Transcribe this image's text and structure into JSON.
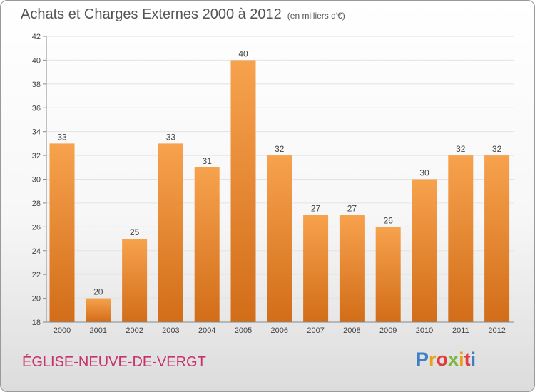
{
  "header": {
    "title": "Achats et Charges Externes 2000 à 2012",
    "unit": "(en milliers d'€)"
  },
  "footer": {
    "location": "ÉGLISE-NEUVE-DE-VERGT",
    "logo": "Proxiti"
  },
  "colors": {
    "bar_top": "#f7a24e",
    "bar_bottom": "#d26d18",
    "location_text": "#c7336b",
    "axis": "#888888"
  },
  "chart_data": {
    "type": "bar",
    "title": "Achats et Charges Externes 2000 à 2012",
    "subtitle": "(en milliers d'€)",
    "categories": [
      "2000",
      "2001",
      "2002",
      "2003",
      "2004",
      "2005",
      "2006",
      "2007",
      "2008",
      "2009",
      "2010",
      "2011",
      "2012"
    ],
    "values": [
      33,
      20,
      25,
      33,
      31,
      40,
      32,
      27,
      27,
      26,
      30,
      32,
      32
    ],
    "ylim": [
      18,
      42
    ],
    "yticks": [
      18,
      20,
      22,
      24,
      26,
      28,
      30,
      32,
      34,
      36,
      38,
      40,
      42
    ],
    "grid": true,
    "data_labels": true
  }
}
